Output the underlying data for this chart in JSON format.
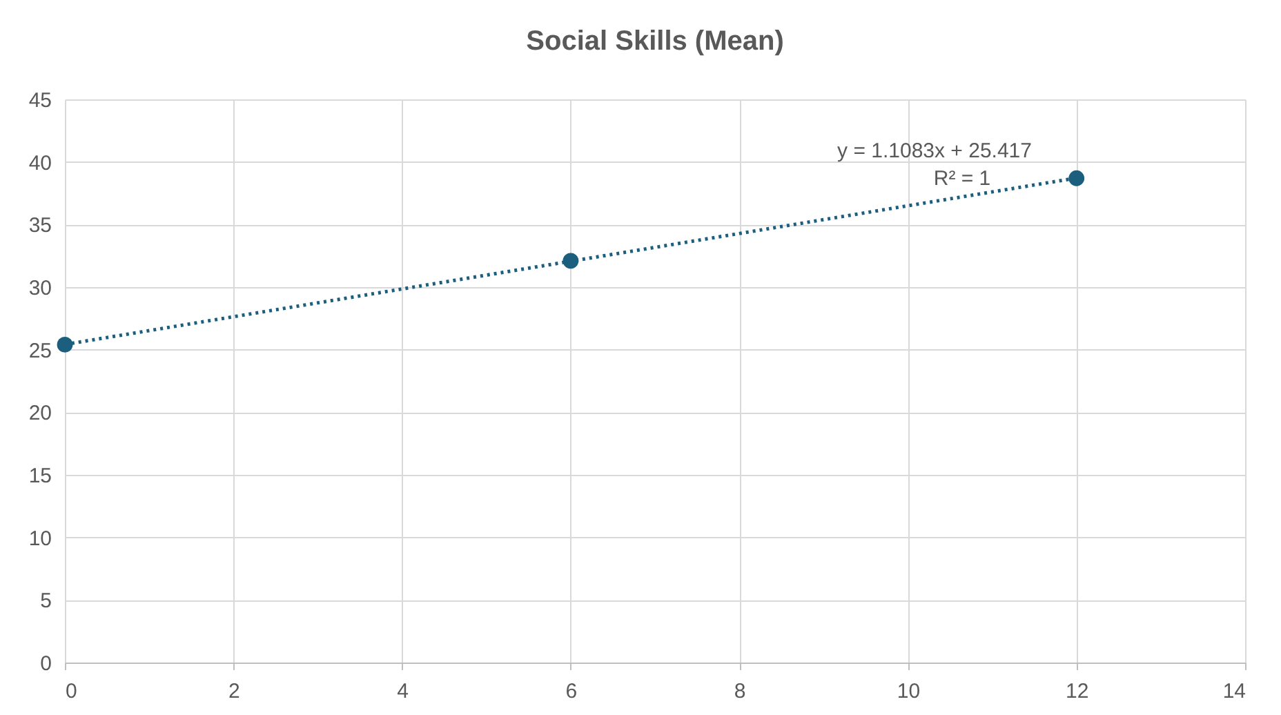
{
  "chart_data": {
    "type": "scatter",
    "title": "Social Skills (Mean)",
    "x": [
      0,
      6,
      12
    ],
    "series": [
      {
        "color": "#1b5e7e",
        "values": [
          25.4,
          32.1,
          38.7
        ],
        "marker": "circle"
      },
      {
        "type": "line",
        "color": "#1b5e7e",
        "x": [
          0,
          12
        ],
        "values": [
          25.417,
          38.717
        ],
        "line_style": "dotted",
        "marker": "none"
      }
    ],
    "xlim": [
      0,
      14
    ],
    "xticks": [
      0,
      2,
      4,
      6,
      8,
      10,
      12,
      14
    ],
    "ylim": [
      0,
      45
    ],
    "yticks": [
      0,
      5,
      10,
      15,
      20,
      25,
      30,
      35,
      40,
      45
    ],
    "grid": true,
    "annotations": [
      "y = 1.1083x + 25.417",
      "R² = 1"
    ]
  }
}
